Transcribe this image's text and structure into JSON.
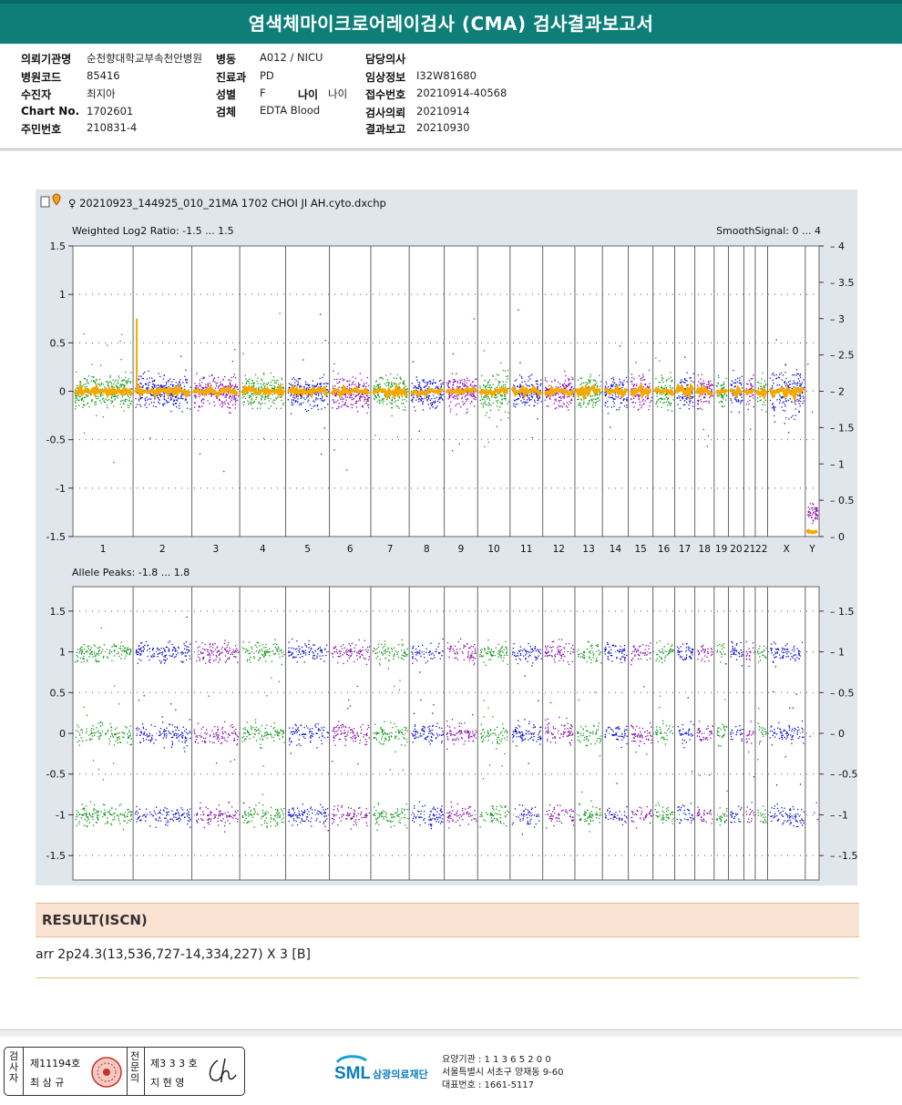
{
  "report": {
    "title": "염색체마이크로어레이검사 (CMA) 검사결과보고서"
  },
  "patient_info": {
    "col1": [
      {
        "label": "의뢰기관명",
        "value": "순천향대학교부속천안병원"
      },
      {
        "label": "병원코드",
        "value": "85416"
      },
      {
        "label": "수진자",
        "value": "최지아"
      },
      {
        "label": "Chart No.",
        "value": "1702601"
      },
      {
        "label": "주민번호",
        "value": "210831-4"
      }
    ],
    "col2": [
      {
        "label": "병동",
        "value": "A012 / NICU"
      },
      {
        "label": "진료과",
        "value": "PD"
      },
      {
        "label": "성별",
        "value": "F"
      },
      {
        "label": "검체",
        "value": "EDTA Blood"
      }
    ],
    "age": {
      "label": "나이",
      "value": "나이"
    },
    "col3": [
      {
        "label": "담당의사",
        "value": ""
      },
      {
        "label": "임상정보",
        "value": "I32W81680"
      },
      {
        "label": "접수번호",
        "value": "20210914-40568"
      },
      {
        "label": "검사의뢰",
        "value": "20210914"
      },
      {
        "label": "결과보고",
        "value": "20210930"
      }
    ]
  },
  "plot": {
    "file_name": "♀ 20210923_144925_010_21MA 1702 CHOI JI AH.cyto.dxchp",
    "top_left_label": "Weighted Log2 Ratio: -1.5 ... 1.5",
    "top_right_label": "SmoothSignal: 0 ... 4",
    "bottom_label": "Allele Peaks: -1.8 ... 1.8"
  },
  "chart_data": [
    {
      "type": "scatter",
      "title": "Weighted Log2 Ratio / SmoothSignal",
      "ylabel_left": "Weighted Log2 Ratio",
      "ylabel_right": "SmoothSignal",
      "ylim_left": [
        -1.5,
        1.5
      ],
      "ylim_right": [
        0,
        4
      ],
      "yticks_left": [
        "1.5",
        "1",
        "0.5",
        "0",
        "-0.5",
        "-1",
        "-1.5"
      ],
      "yticks_right": [
        "4",
        "3.5",
        "3",
        "2.5",
        "2",
        "1.5",
        "1",
        "0.5",
        "0"
      ],
      "chromosomes": [
        "1",
        "2",
        "3",
        "4",
        "5",
        "6",
        "7",
        "8",
        "9",
        "10",
        "11",
        "12",
        "13",
        "14",
        "15",
        "16",
        "17",
        "18",
        "19",
        "20",
        "21",
        "22",
        "X",
        "Y"
      ],
      "chrom_sizes_mb": [
        249,
        243,
        198,
        190,
        181,
        171,
        159,
        145,
        138,
        134,
        135,
        133,
        114,
        107,
        102,
        90,
        83,
        80,
        59,
        64,
        47,
        51,
        156,
        57
      ],
      "series_colors": [
        "#119a1a",
        "#1010d8",
        "#8a0aaa"
      ],
      "smooth_color": "#f5a800",
      "baseline_log2": 0,
      "baseline_smooth": 2,
      "notable": [
        {
          "chrom": "2",
          "region": "2p24.3",
          "smooth_peak": 3,
          "log2_peak": 0.75
        },
        {
          "chrom": "Y",
          "log2_level": -1.3,
          "smooth_level": 0
        }
      ]
    },
    {
      "type": "scatter",
      "title": "Allele Peaks",
      "ylim": [
        -1.8,
        1.8
      ],
      "yticks_left": [
        "1.5",
        "1",
        "0.5",
        "0",
        "-0.5",
        "-1",
        "-1.5"
      ],
      "yticks_right": [
        "1.5",
        "1",
        "0.5",
        "0",
        "-0.5",
        "-1",
        "-1.5"
      ],
      "peaks": [
        1,
        0,
        -1
      ]
    }
  ],
  "result": {
    "heading": "RESULT(ISCN)",
    "text": "arr 2p24.3(13,536,727-14,334,227) X 3 [B]"
  },
  "footer": {
    "sign": {
      "tester_label": "검사자",
      "tester_license": "제11194호",
      "tester_name": "최 삼 규",
      "expert_label": "전문의",
      "expert_license": "제3 3 3 호",
      "expert_name": "지 현 영"
    },
    "logo_sml": "SML",
    "logo_org": "삼광의료재단",
    "institution_code": "요양기관 : 1 1 3 6 5 2 0 0",
    "address": "서울특별시 서초구 양재동 9-60",
    "phone": "대표번호 : 1661-5117"
  }
}
